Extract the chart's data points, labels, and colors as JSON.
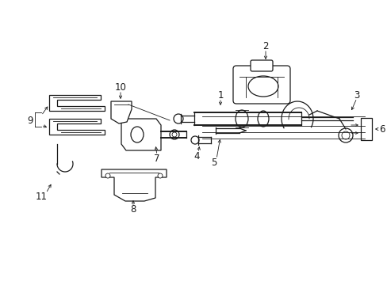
{
  "bg_color": "#ffffff",
  "line_color": "#1a1a1a",
  "fig_width": 4.89,
  "fig_height": 3.6,
  "dpi": 100,
  "lw_thick": 1.4,
  "lw_med": 0.9,
  "lw_thin": 0.6,
  "label_fs": 8.5,
  "arrow_lw": 0.6
}
